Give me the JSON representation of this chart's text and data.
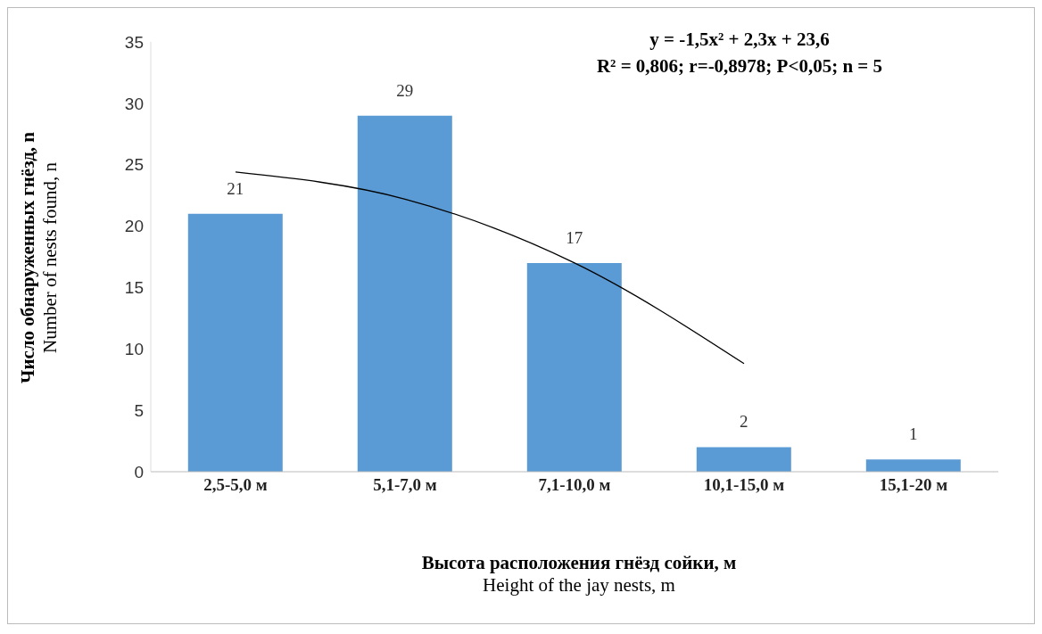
{
  "chart_data": {
    "type": "bar",
    "categories": [
      "2,5-5,0 м",
      "5,1-7,0 м",
      "7,1-10,0 м",
      "10,1-15,0 м",
      "15,1-20 м"
    ],
    "series": [
      {
        "color": "#5b9bd5",
        "values": [
          21,
          29,
          17,
          2,
          1
        ],
        "value_labels": [
          "21",
          "29",
          "17",
          "2",
          "1"
        ]
      },
      {
        "type": "line",
        "color": "#000000",
        "values": [
          24.4,
          22.2,
          17,
          8.8,
          null
        ]
      }
    ],
    "ylim": [
      0,
      35
    ],
    "yticks": [
      0,
      5,
      10,
      15,
      20,
      25,
      30,
      35
    ],
    "grid": false,
    "legend": false,
    "xlabel": "Высота расположения гнёзд сойки, м\nHeight  of the jay nests, m",
    "ylabel": "Число обнаруженных гнёзд, n\nNumber of nests found, n",
    "annotations": [
      "y = -1,5x² + 2,3x + 23,6",
      "R² = 0,806; r=-0,8978; P<0,05; n = 5"
    ]
  }
}
